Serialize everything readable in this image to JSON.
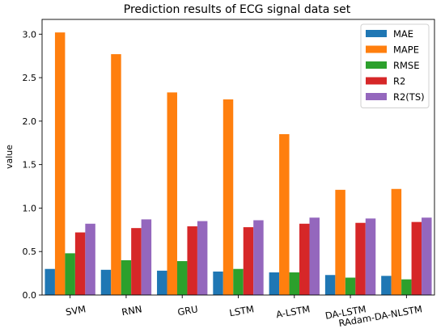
{
  "chart_data": {
    "type": "bar",
    "title": "Prediction results of ECG signal data set",
    "xlabel": "",
    "ylabel": "value",
    "ylim": [
      0,
      3.17
    ],
    "yticks": [
      "0.0",
      "0.5",
      "1.0",
      "1.5",
      "2.0",
      "2.5",
      "3.0"
    ],
    "grid": false,
    "legend_position": "top-right",
    "categories": [
      "SVM",
      "RNN",
      "GRU",
      "LSTM",
      "A-LSTM",
      "DA-LSTM",
      "RAdam-DA-NLSTM"
    ],
    "series": [
      {
        "name": "MAE",
        "color": "#1f77b4",
        "values": [
          0.3,
          0.29,
          0.28,
          0.27,
          0.26,
          0.23,
          0.22
        ]
      },
      {
        "name": "MAPE",
        "color": "#ff7f0e",
        "values": [
          3.02,
          2.77,
          2.33,
          2.25,
          1.85,
          1.21,
          1.22
        ]
      },
      {
        "name": "RMSE",
        "color": "#2ca02c",
        "values": [
          0.48,
          0.4,
          0.39,
          0.3,
          0.26,
          0.2,
          0.18
        ]
      },
      {
        "name": "R2",
        "color": "#d62728",
        "values": [
          0.72,
          0.77,
          0.79,
          0.78,
          0.82,
          0.83,
          0.84
        ]
      },
      {
        "name": "R2(TS)",
        "color": "#9467bd",
        "values": [
          0.82,
          0.87,
          0.85,
          0.86,
          0.89,
          0.88,
          0.89
        ]
      }
    ]
  }
}
